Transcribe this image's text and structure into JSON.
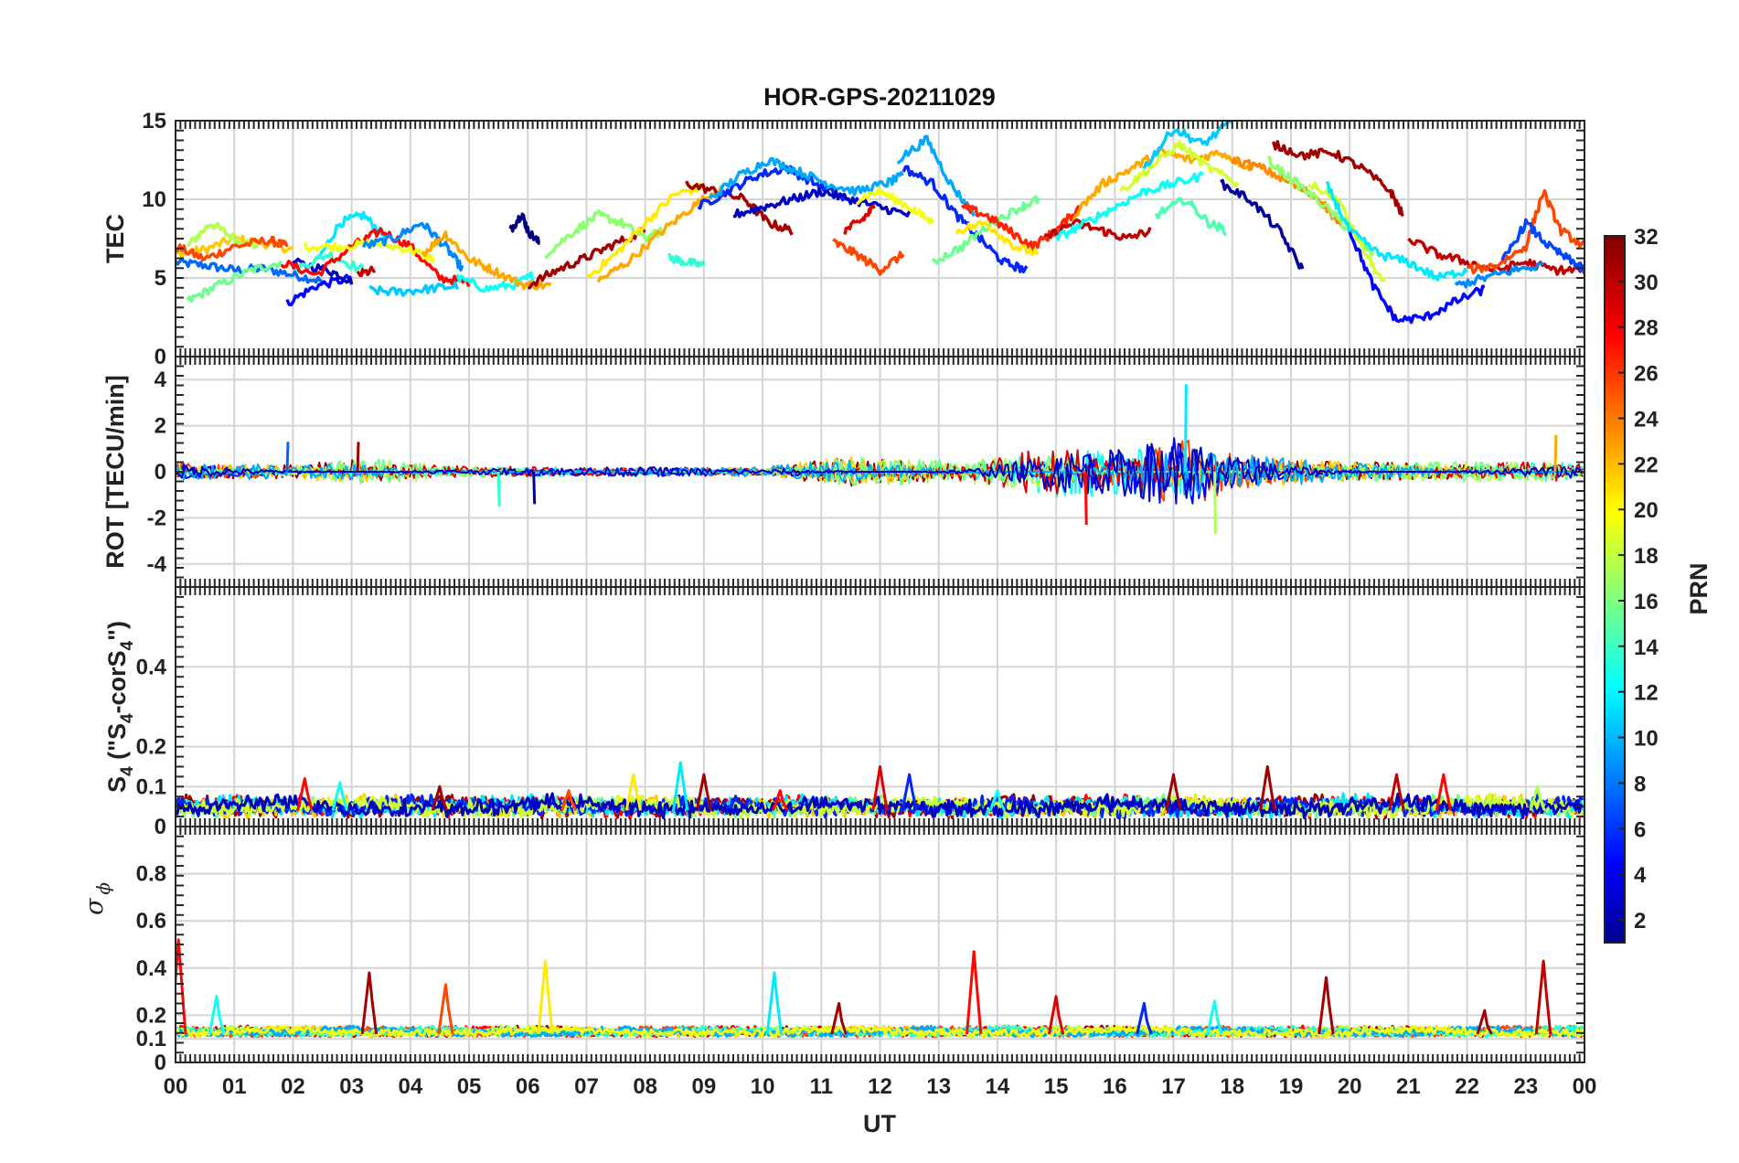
{
  "title": "HOR-GPS-20211029",
  "xaxis": {
    "label": "UT",
    "tick_labels": [
      "00",
      "01",
      "02",
      "03",
      "04",
      "05",
      "06",
      "07",
      "08",
      "09",
      "10",
      "11",
      "12",
      "13",
      "14",
      "15",
      "16",
      "17",
      "18",
      "19",
      "20",
      "21",
      "22",
      "23",
      "00"
    ]
  },
  "colorbar": {
    "label": "PRN",
    "colormap": "jet",
    "range": [
      1,
      32
    ],
    "tick_labels": [
      "2",
      "4",
      "6",
      "8",
      "10",
      "12",
      "14",
      "16",
      "18",
      "20",
      "22",
      "24",
      "26",
      "28",
      "30",
      "32"
    ]
  },
  "chart_data": [
    {
      "type": "line",
      "panel": "TEC",
      "ylabel": "TEC",
      "ylim": [
        0,
        15
      ],
      "ytick_labels": [
        "0",
        "5",
        "10",
        "15"
      ],
      "grid": true,
      "xlim_hours": [
        0,
        24
      ],
      "series": [
        {
          "prn": 8,
          "x": [
            0.0,
            0.5,
            1.0,
            1.5,
            2.0,
            2.5
          ],
          "y": [
            6.0,
            5.8,
            5.5,
            5.6,
            5.2,
            4.8
          ]
        },
        {
          "prn": 22,
          "x": [
            0.0,
            0.5,
            1.0,
            1.5,
            2.0
          ],
          "y": [
            6.5,
            6.8,
            7.5,
            7.2,
            6.8
          ]
        },
        {
          "prn": 18,
          "x": [
            0.2,
            0.6,
            1.0,
            1.4
          ],
          "y": [
            7.0,
            8.5,
            7.5,
            7.0
          ]
        },
        {
          "prn": 26,
          "x": [
            0.0,
            0.5,
            1.0,
            1.6,
            1.9
          ],
          "y": [
            7.0,
            6.2,
            7.0,
            7.4,
            7.0
          ]
        },
        {
          "prn": 16,
          "x": [
            0.2,
            0.7,
            1.3,
            1.8
          ],
          "y": [
            3.5,
            4.5,
            5.5,
            6.0
          ]
        },
        {
          "prn": 5,
          "x": [
            1.9,
            2.4,
            3.0
          ],
          "y": [
            3.4,
            4.5,
            5.0
          ]
        },
        {
          "prn": 12,
          "x": [
            2.4,
            2.8,
            3.2,
            3.6
          ],
          "y": [
            6.0,
            8.5,
            9.0,
            7.5
          ]
        },
        {
          "prn": 3,
          "x": [
            2.0,
            2.6,
            3.0
          ],
          "y": [
            6.0,
            5.5,
            4.8
          ]
        },
        {
          "prn": 14,
          "x": [
            2.0,
            2.6,
            3.2
          ],
          "y": [
            5.5,
            6.5,
            5.5
          ]
        },
        {
          "prn": 28,
          "x": [
            1.8,
            2.4,
            3.0,
            3.5,
            4.0,
            4.5,
            5.0
          ],
          "y": [
            6.0,
            5.2,
            7.0,
            8.0,
            7.0,
            5.0,
            4.7
          ]
        },
        {
          "prn": 20,
          "x": [
            2.2,
            2.8,
            3.4,
            4.0,
            4.4
          ],
          "y": [
            7.0,
            7.0,
            7.2,
            6.8,
            6.2
          ]
        },
        {
          "prn": 9,
          "x": [
            3.2,
            3.7,
            4.2,
            4.6,
            4.9
          ],
          "y": [
            7.0,
            7.5,
            8.5,
            7.0,
            5.5
          ]
        },
        {
          "prn": 30,
          "x": [
            3.1,
            3.4
          ],
          "y": [
            5.2,
            5.5
          ]
        },
        {
          "prn": 11,
          "x": [
            3.3,
            3.8,
            4.3,
            4.8
          ],
          "y": [
            4.2,
            4.1,
            4.3,
            4.5
          ]
        },
        {
          "prn": 13,
          "x": [
            4.8,
            5.3,
            5.8,
            6.1
          ],
          "y": [
            5.0,
            4.3,
            4.6,
            5.2
          ]
        },
        {
          "prn": 23,
          "x": [
            4.2,
            4.6,
            5.0,
            5.4,
            5.9,
            6.4
          ],
          "y": [
            6.5,
            7.8,
            6.2,
            5.5,
            4.6,
            4.5
          ]
        },
        {
          "prn": 1,
          "x": [
            5.7,
            5.9,
            6.0,
            6.2
          ],
          "y": [
            8.0,
            9.1,
            8.0,
            7.2
          ]
        },
        {
          "prn": 31,
          "x": [
            6.0,
            6.5,
            7.0,
            7.5,
            8.0
          ],
          "y": [
            4.5,
            5.5,
            6.3,
            7.2,
            8.0
          ]
        },
        {
          "prn": 17,
          "x": [
            6.3,
            6.8,
            7.2,
            7.6,
            8.0,
            8.3
          ],
          "y": [
            6.5,
            8.0,
            9.0,
            8.5,
            7.5,
            8.0
          ]
        },
        {
          "prn": 21,
          "x": [
            7.0,
            7.5,
            8.0,
            8.5,
            9.0
          ],
          "y": [
            5.0,
            6.5,
            8.5,
            10.3,
            10.8
          ]
        },
        {
          "prn": 23,
          "x": [
            7.2,
            7.7,
            8.3,
            8.8,
            9.3
          ],
          "y": [
            4.8,
            6.0,
            8.0,
            9.5,
            10.8
          ]
        },
        {
          "prn": 14,
          "x": [
            8.4,
            8.7,
            9.0
          ],
          "y": [
            6.3,
            6.0,
            5.8
          ]
        },
        {
          "prn": 31,
          "x": [
            8.7,
            9.2,
            9.7,
            10.1,
            10.5
          ],
          "y": [
            11.0,
            10.5,
            10.0,
            8.5,
            8.0
          ]
        },
        {
          "prn": 6,
          "x": [
            8.9,
            9.4,
            9.9,
            10.4,
            10.9,
            11.4
          ],
          "y": [
            9.5,
            10.5,
            11.5,
            12.0,
            11.0,
            10.0
          ]
        },
        {
          "prn": 10,
          "x": [
            9.1,
            9.6,
            10.1,
            10.6,
            11.1,
            11.6,
            12.1,
            12.4
          ],
          "y": [
            10.0,
            11.5,
            12.5,
            11.8,
            11.0,
            10.5,
            11.0,
            11.5
          ]
        },
        {
          "prn": 3,
          "x": [
            9.5,
            10.0,
            10.5,
            11.0,
            11.5,
            12.0,
            12.5
          ],
          "y": [
            9.0,
            9.5,
            10.0,
            10.5,
            10.0,
            9.5,
            9.0
          ]
        },
        {
          "prn": 26,
          "x": [
            11.2,
            11.6,
            12.0,
            12.4
          ],
          "y": [
            7.3,
            6.5,
            5.5,
            6.5
          ]
        },
        {
          "prn": 29,
          "x": [
            11.4,
            11.7,
            11.9
          ],
          "y": [
            8.0,
            8.7,
            9.5
          ]
        },
        {
          "prn": 20,
          "x": [
            11.6,
            12.0,
            12.5,
            12.9
          ],
          "y": [
            10.0,
            10.5,
            9.5,
            8.5
          ]
        },
        {
          "prn": 10,
          "x": [
            12.3,
            12.8,
            13.2,
            13.6
          ],
          "y": [
            12.5,
            13.8,
            11.0,
            9.0
          ]
        },
        {
          "prn": 6,
          "x": [
            12.4,
            12.9,
            13.3,
            13.7,
            14.1,
            14.5
          ],
          "y": [
            12.0,
            11.0,
            9.0,
            7.5,
            6.0,
            5.5
          ]
        },
        {
          "prn": 16,
          "x": [
            12.9,
            13.4,
            13.9,
            14.4,
            14.7
          ],
          "y": [
            6.0,
            7.0,
            8.5,
            9.5,
            10.0
          ]
        },
        {
          "prn": 27,
          "x": [
            13.4,
            13.8,
            14.2,
            14.6,
            15.0,
            15.4
          ],
          "y": [
            9.5,
            9.0,
            8.0,
            7.0,
            8.0,
            9.5
          ]
        },
        {
          "prn": 21,
          "x": [
            13.3,
            13.8,
            14.3,
            14.7
          ],
          "y": [
            8.0,
            8.5,
            7.0,
            6.5
          ]
        },
        {
          "prn": 30,
          "x": [
            14.8,
            15.3,
            15.8,
            16.2,
            16.6
          ],
          "y": [
            7.5,
            8.5,
            8.0,
            7.5,
            8.0
          ]
        },
        {
          "prn": 13,
          "x": [
            15.0,
            15.5,
            16.0,
            16.5,
            17.0,
            17.5
          ],
          "y": [
            7.5,
            8.5,
            9.5,
            10.5,
            11.0,
            11.5
          ]
        },
        {
          "prn": 23,
          "x": [
            15.3,
            15.8,
            16.3,
            16.8,
            17.3,
            17.8,
            18.3
          ],
          "y": [
            9.0,
            11.0,
            12.0,
            13.0,
            12.5,
            13.0,
            12.0
          ]
        },
        {
          "prn": 19,
          "x": [
            16.1,
            16.6,
            17.1,
            17.6,
            18.1
          ],
          "y": [
            10.5,
            12.0,
            13.5,
            12.0,
            11.0
          ]
        },
        {
          "prn": 11,
          "x": [
            16.5,
            17.0,
            17.5,
            18.0
          ],
          "y": [
            12.0,
            14.5,
            13.5,
            15.0
          ]
        },
        {
          "prn": 15,
          "x": [
            16.7,
            17.2,
            17.6,
            17.9
          ],
          "y": [
            9.0,
            10.0,
            8.5,
            8.0
          ]
        },
        {
          "prn": 2,
          "x": [
            17.8,
            18.3,
            18.8,
            19.2
          ],
          "y": [
            11.0,
            10.0,
            8.0,
            5.5
          ]
        },
        {
          "prn": 24,
          "x": [
            18.0,
            18.5,
            19.0,
            19.5,
            19.9
          ],
          "y": [
            12.5,
            12.0,
            11.0,
            10.0,
            8.0
          ]
        },
        {
          "prn": 31,
          "x": [
            18.7,
            19.2,
            19.7,
            20.2,
            20.7,
            20.9
          ],
          "y": [
            13.5,
            12.8,
            13.0,
            12.0,
            10.5,
            9.0
          ]
        },
        {
          "prn": 17,
          "x": [
            18.6,
            19.1,
            19.6,
            20.0,
            20.4
          ],
          "y": [
            12.5,
            11.0,
            9.5,
            8.0,
            6.5
          ]
        },
        {
          "prn": 19,
          "x": [
            19.3,
            19.8,
            20.2,
            20.6
          ],
          "y": [
            11.0,
            10.0,
            7.0,
            4.5
          ]
        },
        {
          "prn": 12,
          "x": [
            19.6,
            20.0,
            20.5,
            21.0,
            21.5,
            22.0
          ],
          "y": [
            11.0,
            8.0,
            6.5,
            6.0,
            5.0,
            5.5
          ]
        },
        {
          "prn": 5,
          "x": [
            20.0,
            20.4,
            20.8,
            21.3,
            21.8,
            22.3
          ],
          "y": [
            8.0,
            4.5,
            2.3,
            2.5,
            3.5,
            4.3
          ]
        },
        {
          "prn": 30,
          "x": [
            21.0,
            21.5,
            22.0,
            22.5,
            23.0,
            23.5,
            24.0
          ],
          "y": [
            7.5,
            6.5,
            6.0,
            5.5,
            6.0,
            5.5,
            5.5
          ]
        },
        {
          "prn": 26,
          "x": [
            22.0,
            22.5,
            23.0,
            23.3,
            23.6,
            24.0
          ],
          "y": [
            5.5,
            5.8,
            7.0,
            10.5,
            8.0,
            7.0
          ]
        },
        {
          "prn": 7,
          "x": [
            22.6,
            23.0,
            23.4,
            23.8,
            24.0
          ],
          "y": [
            6.0,
            8.5,
            7.0,
            6.0,
            5.5
          ]
        },
        {
          "prn": 9,
          "x": [
            21.8,
            22.3,
            22.8,
            23.3
          ],
          "y": [
            4.5,
            5.0,
            5.5,
            5.8
          ]
        }
      ]
    },
    {
      "type": "line",
      "panel": "ROT",
      "ylabel": "ROT [TECU/min]",
      "ylim": [
        -5,
        5
      ],
      "ytick_labels": [
        "-4",
        "-2",
        "0",
        "2",
        "4"
      ],
      "grid": true,
      "xlim_hours": [
        0,
        24
      ],
      "activity_envelope": [
        {
          "x": 0,
          "amp": 0.4
        },
        {
          "x": 2,
          "amp": 0.3
        },
        {
          "x": 3.2,
          "amp": 0.6
        },
        {
          "x": 5,
          "amp": 0.25
        },
        {
          "x": 7,
          "amp": 0.2
        },
        {
          "x": 10,
          "amp": 0.2
        },
        {
          "x": 11.5,
          "amp": 0.7
        },
        {
          "x": 12.5,
          "amp": 0.6
        },
        {
          "x": 13.5,
          "amp": 0.5
        },
        {
          "x": 15,
          "amp": 1.2
        },
        {
          "x": 16,
          "amp": 1.0
        },
        {
          "x": 17.2,
          "amp": 1.6
        },
        {
          "x": 18.0,
          "amp": 0.8
        },
        {
          "x": 19.5,
          "amp": 0.5
        },
        {
          "x": 21,
          "amp": 0.4
        },
        {
          "x": 23.5,
          "amp": 0.5
        },
        {
          "x": 24,
          "amp": 0.3
        }
      ],
      "peaks": [
        {
          "x": 1.9,
          "y": 1.3
        },
        {
          "x": 3.1,
          "y": 1.3
        },
        {
          "x": 5.5,
          "y": -1.5
        },
        {
          "x": 6.1,
          "y": -1.4
        },
        {
          "x": 15.5,
          "y": -2.3
        },
        {
          "x": 17.2,
          "y": 3.8
        },
        {
          "x": 17.7,
          "y": -2.7
        },
        {
          "x": 23.5,
          "y": 1.6
        }
      ]
    },
    {
      "type": "line",
      "panel": "S4",
      "ylabel": "S4 (\"S4-corS4\")",
      "ylim": [
        0,
        0.6
      ],
      "ytick_labels": [
        "0",
        "0.1",
        "0.2",
        "0.4"
      ],
      "grid": true,
      "xlim_hours": [
        0,
        24
      ],
      "baseline": 0.03,
      "peaks": [
        {
          "x": 2.2,
          "y": 0.12
        },
        {
          "x": 2.8,
          "y": 0.11
        },
        {
          "x": 4.5,
          "y": 0.1
        },
        {
          "x": 6.7,
          "y": 0.09
        },
        {
          "x": 7.8,
          "y": 0.13
        },
        {
          "x": 8.6,
          "y": 0.16
        },
        {
          "x": 9.0,
          "y": 0.13
        },
        {
          "x": 10.3,
          "y": 0.09
        },
        {
          "x": 12.0,
          "y": 0.15
        },
        {
          "x": 12.5,
          "y": 0.13
        },
        {
          "x": 14.0,
          "y": 0.09
        },
        {
          "x": 17.0,
          "y": 0.13
        },
        {
          "x": 18.6,
          "y": 0.15
        },
        {
          "x": 20.8,
          "y": 0.13
        },
        {
          "x": 21.6,
          "y": 0.13
        },
        {
          "x": 23.2,
          "y": 0.1
        }
      ]
    },
    {
      "type": "line",
      "panel": "sigma_phi",
      "ylabel": "σ ϕ",
      "ylim": [
        0,
        1
      ],
      "ytick_labels": [
        "0",
        "0.1",
        "0.2",
        "0.4",
        "0.6",
        "0.8"
      ],
      "grid": true,
      "xlim_hours": [
        0,
        24
      ],
      "baseline": 0.11,
      "peaks": [
        {
          "x": 0.05,
          "y": 0.52
        },
        {
          "x": 0.7,
          "y": 0.28
        },
        {
          "x": 3.3,
          "y": 0.38
        },
        {
          "x": 4.6,
          "y": 0.33
        },
        {
          "x": 6.3,
          "y": 0.43
        },
        {
          "x": 10.2,
          "y": 0.38
        },
        {
          "x": 11.3,
          "y": 0.25
        },
        {
          "x": 13.6,
          "y": 0.47
        },
        {
          "x": 15.0,
          "y": 0.28
        },
        {
          "x": 16.5,
          "y": 0.25
        },
        {
          "x": 17.7,
          "y": 0.26
        },
        {
          "x": 19.6,
          "y": 0.36
        },
        {
          "x": 22.3,
          "y": 0.22
        },
        {
          "x": 23.3,
          "y": 0.43
        }
      ]
    }
  ]
}
